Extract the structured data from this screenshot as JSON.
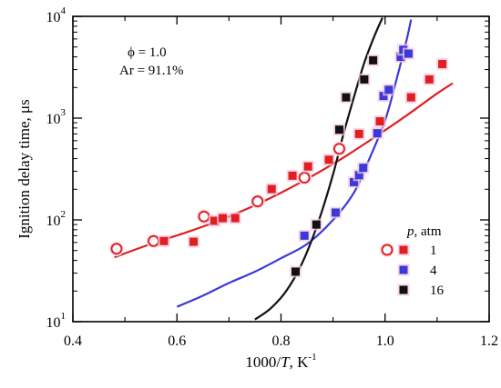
{
  "chart_data": {
    "type": "scatter",
    "title": "",
    "xlabel": "1000/T, K⁻¹",
    "xlabel_parts": [
      "1000/",
      "T",
      ", K",
      "-1"
    ],
    "ylabel": "Ignition delay time, μs",
    "xlim": [
      0.4,
      1.2
    ],
    "ylim": [
      10,
      10000
    ],
    "y_scale": "log",
    "grid": false,
    "x_ticks": [
      "0.4",
      "0.6",
      "0.8",
      "1.0",
      "1.2"
    ],
    "y_ticks": [
      {
        "base": "10",
        "exp": "1"
      },
      {
        "base": "10",
        "exp": "2"
      },
      {
        "base": "10",
        "exp": "3"
      },
      {
        "base": "10",
        "exp": "4"
      }
    ],
    "annotations": [
      "ϕ = 1.0",
      "Ar = 91.1%"
    ],
    "legend_title": {
      "var": "p",
      "unit": ", atm"
    },
    "legend_position": "bottom-right",
    "series": [
      {
        "name": "1",
        "color": "#e02020",
        "marker": "square",
        "points": [
          [
            0.575,
            62
          ],
          [
            0.632,
            61
          ],
          [
            0.672,
            98
          ],
          [
            0.688,
            104
          ],
          [
            0.712,
            104
          ],
          [
            0.782,
            201
          ],
          [
            0.822,
            272
          ],
          [
            0.852,
            335
          ],
          [
            0.892,
            390
          ],
          [
            0.95,
            700
          ],
          [
            0.99,
            930
          ],
          [
            1.05,
            1600
          ],
          [
            1.085,
            2400
          ],
          [
            1.11,
            3400
          ]
        ],
        "open_markers": [
          [
            0.484,
            52
          ],
          [
            0.555,
            62
          ],
          [
            0.652,
            108
          ],
          [
            0.755,
            152
          ],
          [
            0.845,
            260
          ],
          [
            0.912,
            500
          ]
        ],
        "fit": [
          [
            0.48,
            43
          ],
          [
            0.55,
            58
          ],
          [
            0.62,
            76
          ],
          [
            0.68,
            98
          ],
          [
            0.74,
            132
          ],
          [
            0.8,
            185
          ],
          [
            0.86,
            270
          ],
          [
            0.92,
            410
          ],
          [
            0.98,
            650
          ],
          [
            1.04,
            1050
          ],
          [
            1.1,
            1750
          ],
          [
            1.13,
            2200
          ]
        ]
      },
      {
        "name": "4",
        "color": "#3a3ad8",
        "marker": "square",
        "points": [
          [
            0.845,
            70
          ],
          [
            0.905,
            118
          ],
          [
            0.94,
            235
          ],
          [
            0.95,
            275
          ],
          [
            0.958,
            325
          ],
          [
            0.985,
            710
          ],
          [
            0.997,
            1650
          ],
          [
            1.007,
            1900
          ],
          [
            1.03,
            4000
          ],
          [
            1.035,
            4700
          ],
          [
            1.045,
            4300
          ]
        ],
        "fit": [
          [
            0.6,
            14
          ],
          [
            0.65,
            18
          ],
          [
            0.7,
            24
          ],
          [
            0.75,
            31
          ],
          [
            0.8,
            42
          ],
          [
            0.85,
            58
          ],
          [
            0.9,
            100
          ],
          [
            0.94,
            185
          ],
          [
            0.97,
            400
          ],
          [
            1.0,
            950
          ],
          [
            1.02,
            2200
          ],
          [
            1.04,
            5500
          ],
          [
            1.05,
            9300
          ]
        ]
      },
      {
        "name": "16",
        "color": "#111111",
        "marker": "square",
        "points": [
          [
            0.828,
            31
          ],
          [
            0.868,
            90
          ],
          [
            0.912,
            770
          ],
          [
            0.925,
            1600
          ],
          [
            0.96,
            2400
          ],
          [
            0.977,
            3700
          ]
        ],
        "fit": [
          [
            0.75,
            10.5
          ],
          [
            0.78,
            13.5
          ],
          [
            0.81,
            20
          ],
          [
            0.84,
            37
          ],
          [
            0.87,
            90
          ],
          [
            0.9,
            280
          ],
          [
            0.92,
            700
          ],
          [
            0.94,
            1600
          ],
          [
            0.96,
            3500
          ],
          [
            0.98,
            6500
          ],
          [
            0.995,
            9700
          ]
        ]
      }
    ]
  }
}
